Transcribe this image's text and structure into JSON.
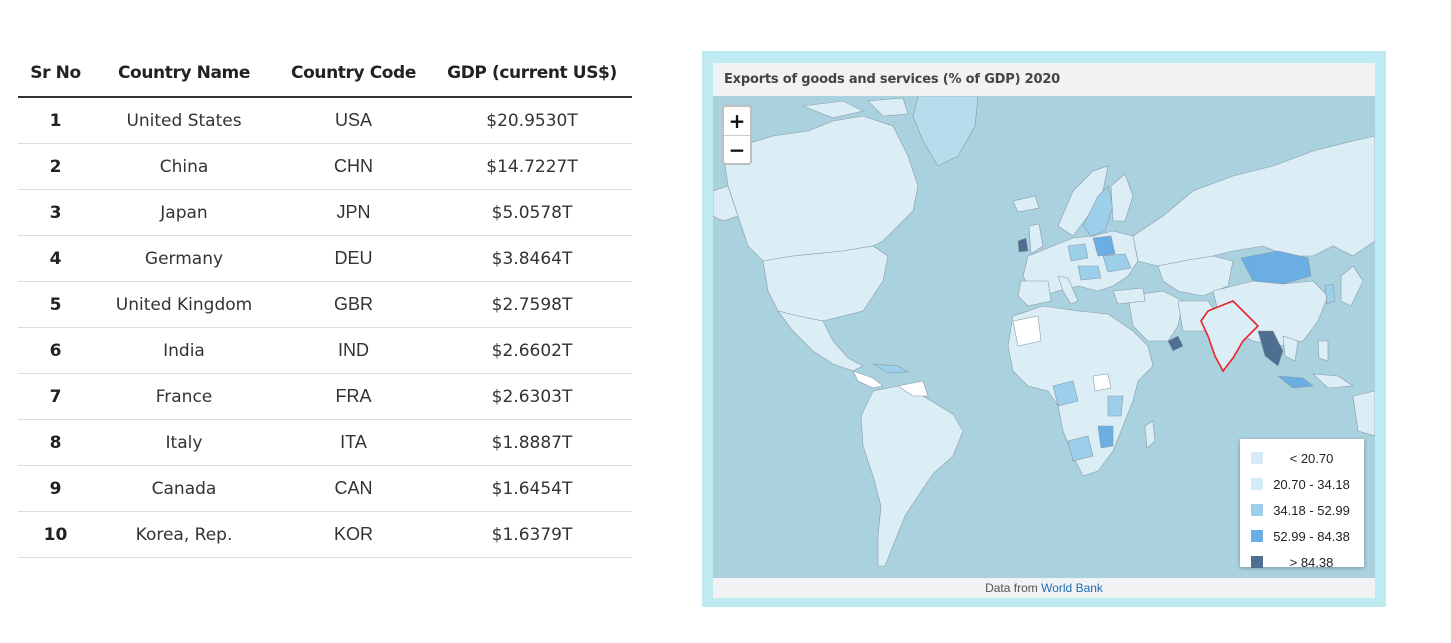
{
  "table": {
    "headers": {
      "sr_no": "Sr No",
      "country_name": "Country Name",
      "country_code": "Country Code",
      "gdp": "GDP (current US$)"
    },
    "rows": [
      {
        "sr": "1",
        "name": "United States",
        "code": "USA",
        "gdp": "$20.9530T"
      },
      {
        "sr": "2",
        "name": "China",
        "code": "CHN",
        "gdp": "$14.7227T"
      },
      {
        "sr": "3",
        "name": "Japan",
        "code": "JPN",
        "gdp": "$5.0578T"
      },
      {
        "sr": "4",
        "name": "Germany",
        "code": "DEU",
        "gdp": "$3.8464T"
      },
      {
        "sr": "5",
        "name": "United Kingdom",
        "code": "GBR",
        "gdp": "$2.7598T"
      },
      {
        "sr": "6",
        "name": "India",
        "code": "IND",
        "gdp": "$2.6602T"
      },
      {
        "sr": "7",
        "name": "France",
        "code": "FRA",
        "gdp": "$2.6303T"
      },
      {
        "sr": "8",
        "name": "Italy",
        "code": "ITA",
        "gdp": "$1.8887T"
      },
      {
        "sr": "9",
        "name": "Canada",
        "code": "CAN",
        "gdp": "$1.6454T"
      },
      {
        "sr": "10",
        "name": "Korea, Rep.",
        "code": "KOR",
        "gdp": "$1.6379T"
      }
    ]
  },
  "map": {
    "title": "Exports of goods and services (% of GDP) 2020",
    "zoom_in_label": "+",
    "zoom_out_label": "−",
    "legend": [
      {
        "label": "< 20.70",
        "color": "#d6ebf7"
      },
      {
        "label": "20.70 - 34.18",
        "color": "#d3ecf7"
      },
      {
        "label": "34.18 - 52.99",
        "color": "#9ccfe9"
      },
      {
        "label": "52.99 - 84.38",
        "color": "#6aaee4"
      },
      {
        "label": "> 84.38",
        "color": "#4e6e92"
      }
    ],
    "footer_prefix": "Data from",
    "footer_link": "World Bank",
    "colors": {
      "ocean": "#a9d2de",
      "land": "#dbeef6",
      "highlight_border": "#e8242c"
    }
  }
}
